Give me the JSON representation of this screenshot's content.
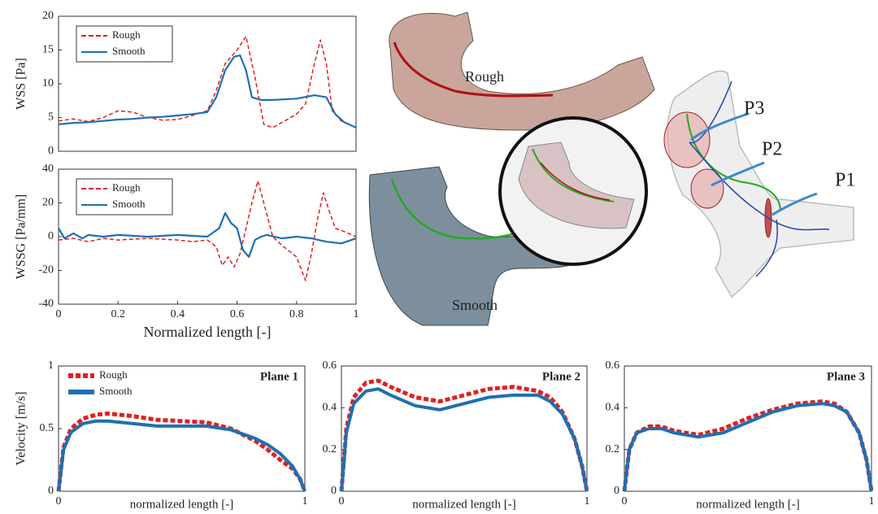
{
  "chart_data": [
    {
      "type": "line",
      "ylabel": "WSS [Pa]",
      "xlim": [
        0,
        1
      ],
      "ylim": [
        0,
        20
      ],
      "yticks": [
        0,
        5,
        10,
        15,
        20
      ],
      "legend": "upper left",
      "legend_frame": true,
      "series": [
        {
          "name": "Rough",
          "color": "#e02020",
          "linestyle": "dashed",
          "x": [
            0,
            0.05,
            0.1,
            0.15,
            0.2,
            0.25,
            0.3,
            0.35,
            0.4,
            0.45,
            0.5,
            0.53,
            0.56,
            0.6,
            0.63,
            0.66,
            0.69,
            0.72,
            0.76,
            0.8,
            0.83,
            0.86,
            0.88,
            0.9,
            0.92,
            0.95,
            1
          ],
          "values": [
            4.5,
            4.8,
            4.4,
            5,
            6,
            5.8,
            5,
            4.6,
            4.7,
            5.3,
            6,
            9,
            13,
            15,
            17,
            11,
            4,
            3.5,
            4.5,
            5.5,
            7,
            13,
            16.5,
            13,
            6,
            4.5,
            3.5
          ]
        },
        {
          "name": "Smooth",
          "color": "#1f6fb2",
          "linestyle": "solid",
          "x": [
            0,
            0.05,
            0.1,
            0.15,
            0.2,
            0.25,
            0.3,
            0.35,
            0.4,
            0.45,
            0.5,
            0.53,
            0.56,
            0.59,
            0.61,
            0.63,
            0.65,
            0.68,
            0.72,
            0.8,
            0.86,
            0.9,
            0.93,
            0.96,
            1
          ],
          "values": [
            4,
            4.2,
            4.3,
            4.5,
            4.7,
            4.8,
            5,
            5.1,
            5.3,
            5.5,
            5.8,
            8,
            12,
            14,
            14.2,
            12,
            8,
            7.6,
            7.6,
            7.8,
            8.3,
            8,
            5.5,
            4.3,
            3.5
          ]
        }
      ]
    },
    {
      "type": "line",
      "ylabel": "WSSG [Pa/mm]",
      "xlabel": "Normalized length [-]",
      "xlim": [
        0,
        1
      ],
      "ylim": [
        -40,
        40
      ],
      "yticks": [
        -40,
        -20,
        0,
        20,
        40
      ],
      "xticks": [
        0,
        0.2,
        0.4,
        0.6,
        0.8,
        1
      ],
      "legend": "upper left",
      "legend_frame": true,
      "series": [
        {
          "name": "Rough",
          "color": "#e02020",
          "linestyle": "dashed",
          "x": [
            0,
            0.05,
            0.1,
            0.15,
            0.2,
            0.3,
            0.4,
            0.45,
            0.5,
            0.53,
            0.55,
            0.57,
            0.59,
            0.61,
            0.63,
            0.65,
            0.67,
            0.69,
            0.72,
            0.75,
            0.8,
            0.83,
            0.85,
            0.87,
            0.89,
            0.91,
            0.93,
            0.96,
            1
          ],
          "values": [
            -2,
            -1,
            -3,
            -1,
            -2,
            -1,
            -2,
            -3,
            -2,
            -6,
            -17,
            -12,
            -18,
            -10,
            5,
            20,
            33,
            20,
            0,
            -5,
            -12,
            -26,
            -10,
            10,
            26,
            15,
            5,
            3,
            0
          ]
        },
        {
          "name": "Smooth",
          "color": "#1f6fb2",
          "linestyle": "solid",
          "x": [
            0,
            0.02,
            0.05,
            0.08,
            0.1,
            0.15,
            0.2,
            0.3,
            0.4,
            0.5,
            0.54,
            0.56,
            0.58,
            0.6,
            0.62,
            0.64,
            0.66,
            0.68,
            0.7,
            0.75,
            0.8,
            0.85,
            0.9,
            0.95,
            1
          ],
          "values": [
            5,
            -1,
            2,
            -1,
            1,
            0,
            1,
            0,
            1,
            0,
            5,
            14,
            8,
            5,
            -8,
            -12,
            -2,
            0,
            1,
            -1,
            0,
            -1,
            -3,
            -4,
            -1
          ]
        }
      ]
    },
    {
      "type": "line",
      "title": "Plane 1",
      "ylabel": "Velocity [m/s]",
      "xlabel": "normalized length [-]",
      "xlim": [
        0,
        1
      ],
      "ylim": [
        0,
        1
      ],
      "yticks": [
        0,
        0.5,
        1
      ],
      "xticks": [
        0,
        1
      ],
      "legend": "upper left",
      "legend_frame": false,
      "thick": true,
      "series": [
        {
          "name": "Rough",
          "color": "#e02020",
          "linestyle": "dashed",
          "x": [
            0,
            0.02,
            0.05,
            0.1,
            0.15,
            0.2,
            0.3,
            0.4,
            0.5,
            0.6,
            0.7,
            0.8,
            0.85,
            0.9,
            0.95,
            0.98,
            1
          ],
          "values": [
            0,
            0.35,
            0.5,
            0.58,
            0.61,
            0.62,
            0.6,
            0.57,
            0.56,
            0.55,
            0.5,
            0.4,
            0.33,
            0.25,
            0.18,
            0.1,
            0
          ]
        },
        {
          "name": "Smooth",
          "color": "#1f6fb2",
          "linestyle": "solid",
          "x": [
            0,
            0.02,
            0.05,
            0.1,
            0.15,
            0.2,
            0.3,
            0.4,
            0.5,
            0.6,
            0.7,
            0.8,
            0.85,
            0.9,
            0.95,
            0.98,
            1
          ],
          "values": [
            0,
            0.33,
            0.47,
            0.54,
            0.56,
            0.56,
            0.54,
            0.52,
            0.52,
            0.52,
            0.49,
            0.42,
            0.37,
            0.3,
            0.2,
            0.1,
            0
          ]
        }
      ]
    },
    {
      "type": "line",
      "title": "Plane 2",
      "xlabel": "normalized length [-]",
      "xlim": [
        0,
        1
      ],
      "ylim": [
        0,
        0.6
      ],
      "yticks": [
        0,
        0.2,
        0.4,
        0.6
      ],
      "xticks": [
        0,
        1
      ],
      "thick": true,
      "series": [
        {
          "color": "#e02020",
          "linestyle": "dashed",
          "x": [
            0,
            0.02,
            0.05,
            0.1,
            0.15,
            0.2,
            0.3,
            0.4,
            0.5,
            0.6,
            0.7,
            0.8,
            0.85,
            0.9,
            0.95,
            0.98,
            1
          ],
          "values": [
            0,
            0.3,
            0.45,
            0.52,
            0.53,
            0.5,
            0.45,
            0.43,
            0.46,
            0.49,
            0.5,
            0.48,
            0.45,
            0.38,
            0.25,
            0.12,
            0
          ]
        },
        {
          "color": "#1f6fb2",
          "linestyle": "solid",
          "x": [
            0,
            0.02,
            0.05,
            0.1,
            0.15,
            0.2,
            0.3,
            0.4,
            0.5,
            0.6,
            0.7,
            0.8,
            0.85,
            0.9,
            0.95,
            0.98,
            1
          ],
          "values": [
            0,
            0.28,
            0.42,
            0.48,
            0.49,
            0.46,
            0.41,
            0.39,
            0.42,
            0.45,
            0.46,
            0.46,
            0.43,
            0.37,
            0.25,
            0.12,
            0
          ]
        }
      ]
    },
    {
      "type": "line",
      "title": "Plane 3",
      "xlabel": "normalized length [-]",
      "xlim": [
        0,
        1
      ],
      "ylim": [
        0,
        0.6
      ],
      "yticks": [
        0,
        0.2,
        0.4,
        0.6
      ],
      "xticks": [
        0,
        1
      ],
      "thick": true,
      "series": [
        {
          "color": "#e02020",
          "linestyle": "dashed",
          "x": [
            0,
            0.02,
            0.05,
            0.1,
            0.15,
            0.2,
            0.3,
            0.4,
            0.5,
            0.6,
            0.7,
            0.8,
            0.85,
            0.9,
            0.95,
            0.98,
            1
          ],
          "values": [
            0,
            0.2,
            0.28,
            0.31,
            0.31,
            0.29,
            0.27,
            0.3,
            0.35,
            0.39,
            0.42,
            0.43,
            0.42,
            0.38,
            0.28,
            0.15,
            0
          ]
        },
        {
          "color": "#1f6fb2",
          "linestyle": "solid",
          "x": [
            0,
            0.02,
            0.05,
            0.1,
            0.15,
            0.2,
            0.3,
            0.4,
            0.5,
            0.6,
            0.7,
            0.8,
            0.85,
            0.9,
            0.95,
            0.98,
            1
          ],
          "values": [
            0,
            0.2,
            0.28,
            0.3,
            0.3,
            0.28,
            0.26,
            0.28,
            0.33,
            0.38,
            0.41,
            0.42,
            0.41,
            0.38,
            0.28,
            0.15,
            0
          ]
        }
      ]
    }
  ],
  "illustration": {
    "rough_label": "Rough",
    "smooth_label": "Smooth",
    "plane_labels": [
      "P3",
      "P2",
      "P1"
    ]
  }
}
